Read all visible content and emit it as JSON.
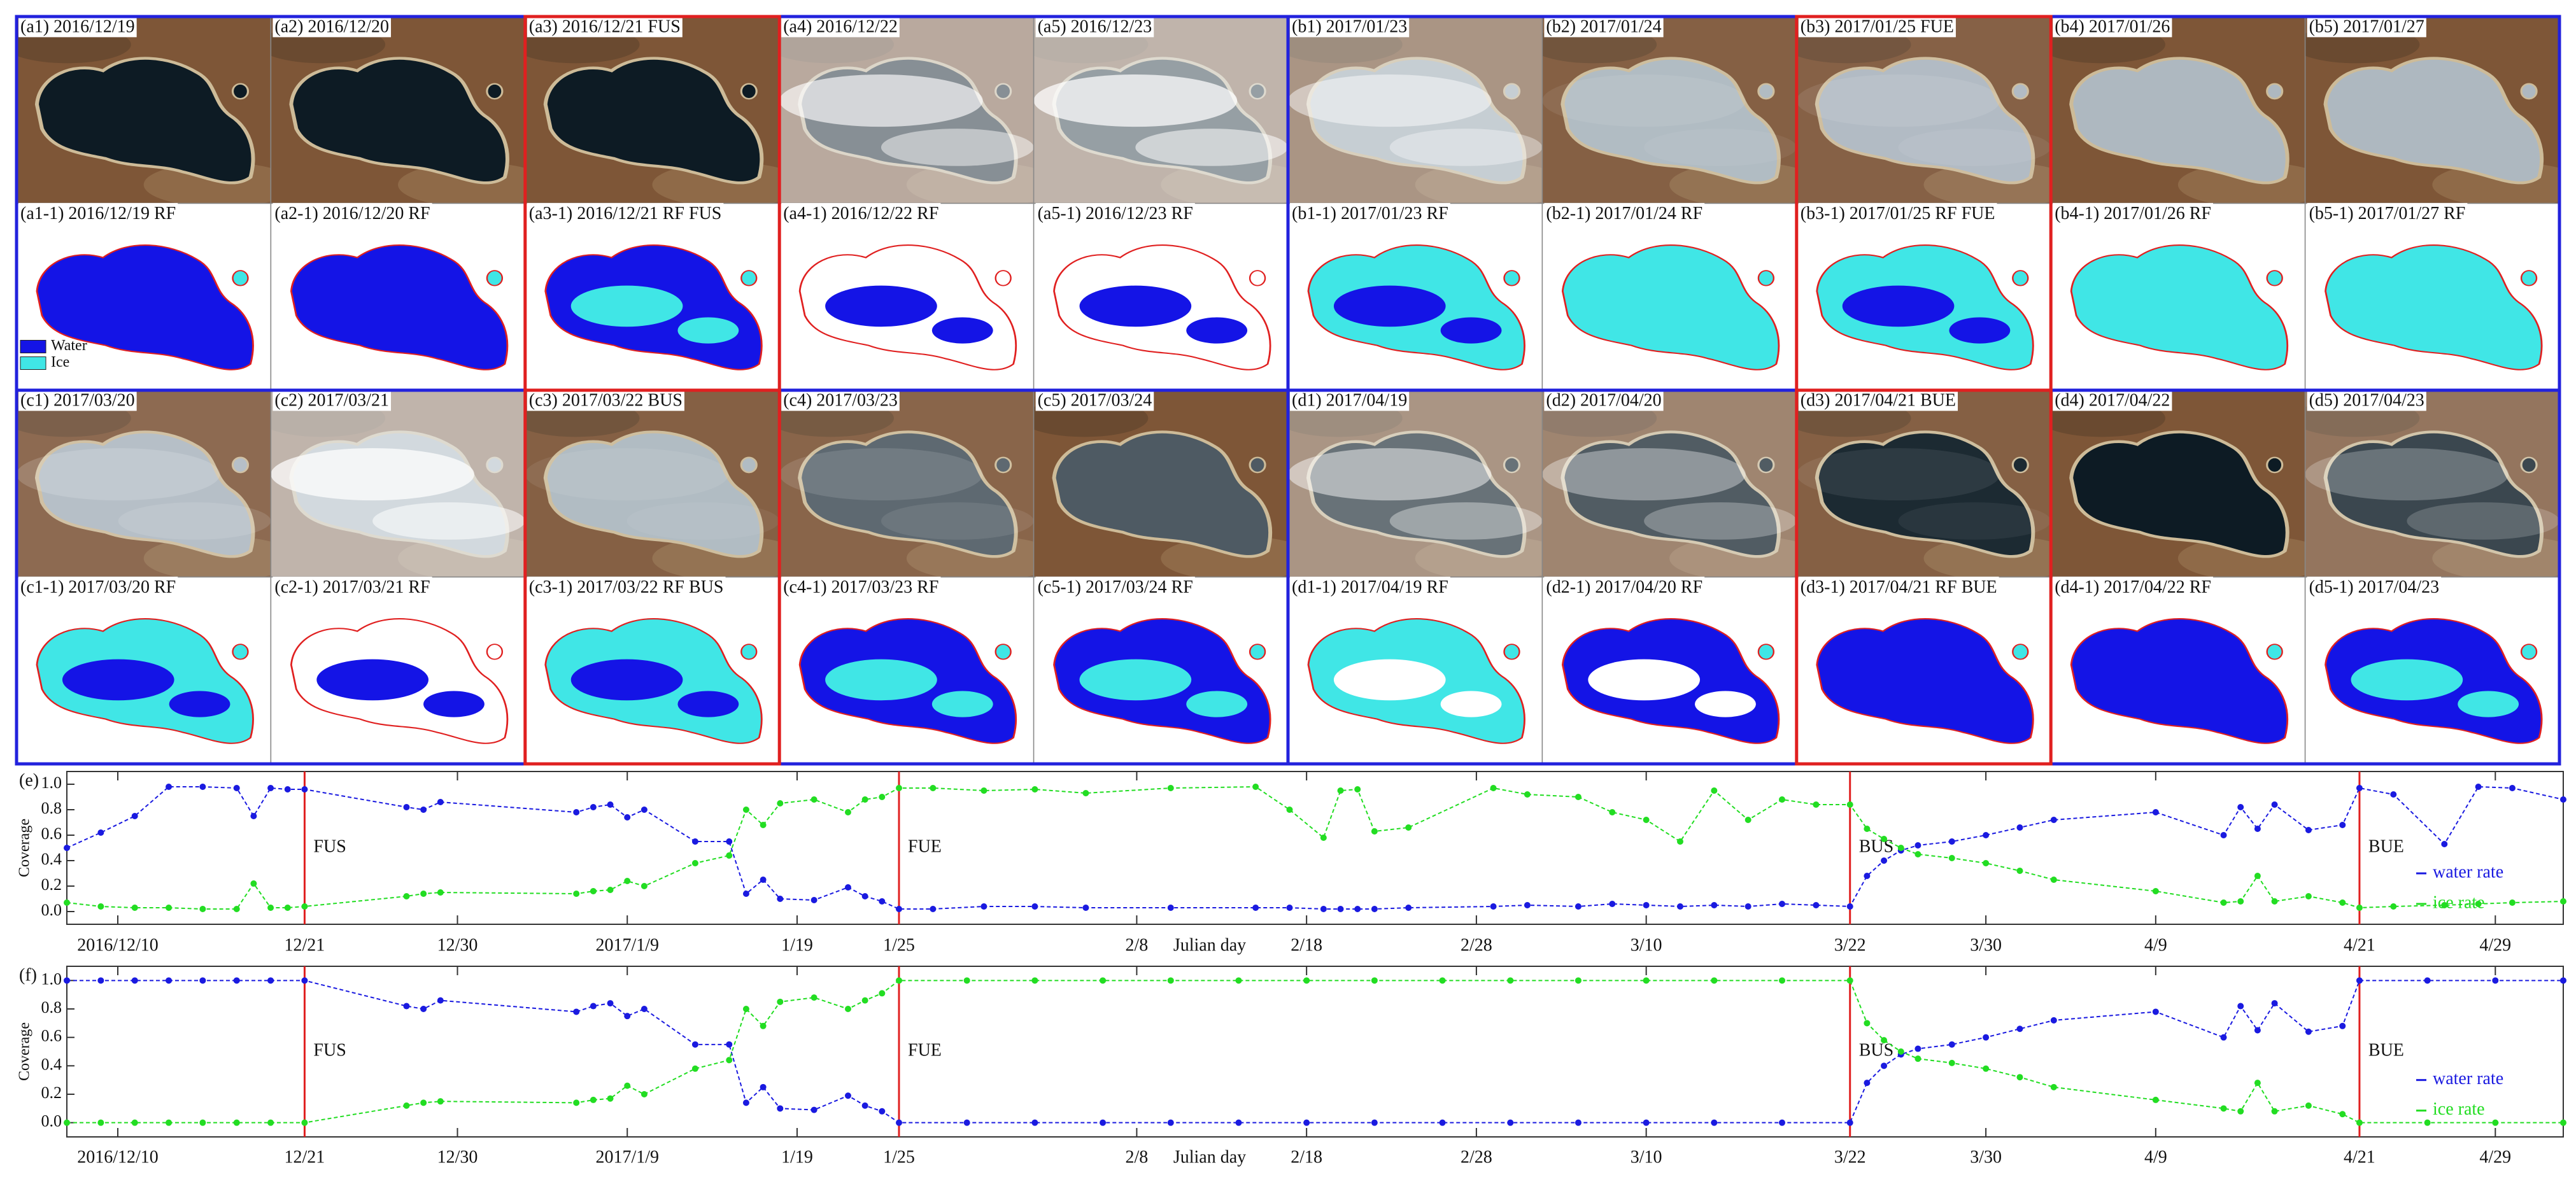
{
  "panels": [
    "(a1) 2016/12/19",
    "(a2) 2016/12/20",
    "(a3) 2016/12/21 FUS",
    "(a4) 2016/12/22",
    "(a5) 2016/12/23",
    "(b1) 2017/01/23",
    "(b2) 2017/01/24",
    "(b3) 2017/01/25 FUE",
    "(b4) 2017/01/26",
    "(b5) 2017/01/27",
    "(a1-1) 2016/12/19 RF",
    "(a2-1) 2016/12/20 RF",
    "(a3-1) 2016/12/21 RF FUS",
    "(a4-1) 2016/12/22 RF",
    "(a5-1) 2016/12/23 RF",
    "(b1-1) 2017/01/23 RF",
    "(b2-1) 2017/01/24 RF",
    "(b3-1) 2017/01/25 RF FUE",
    "(b4-1) 2017/01/26 RF",
    "(b5-1) 2017/01/27 RF",
    "(c1) 2017/03/20",
    "(c2) 2017/03/21",
    "(c3) 2017/03/22 BUS",
    "(c4) 2017/03/23",
    "(c5) 2017/03/24",
    "(d1) 2017/04/19",
    "(d2) 2017/04/20",
    "(d3) 2017/04/21 BUE",
    "(d4) 2017/04/22",
    "(d5) 2017/04/23",
    "(c1-1) 2017/03/20 RF",
    "(c2-1) 2017/03/21 RF",
    "(c3-1) 2017/03/22 RF BUS",
    "(c4-1) 2017/03/23 RF",
    "(c5-1) 2017/03/24 RF",
    "(d1-1) 2017/04/19 RF",
    "(d2-1) 2017/04/20 RF",
    "(d3-1) 2017/04/21 RF BUE",
    "(d4-1) 2017/04/22 RF",
    "(d5-1) 2017/04/23"
  ],
  "legend": [
    "Water",
    "Ice"
  ],
  "chart_data": [
    {
      "type": "line",
      "label": "(e)",
      "ylabel": "Coverage",
      "xlabel": "Julian day",
      "x": [
        "2016/12/7",
        "2016/12/9",
        "2016/12/11",
        "2016/12/13",
        "2016/12/15",
        "2016/12/17",
        "2016/12/18",
        "2016/12/19",
        "2016/12/20",
        "2016/12/21",
        "2016/12/27",
        "2016/12/28",
        "2016/12/29",
        "2017/1/6",
        "2017/1/7",
        "2017/1/8",
        "2017/1/9",
        "2017/1/10",
        "2017/1/13",
        "2017/1/15",
        "2017/1/16",
        "2017/1/17",
        "2017/1/18",
        "2017/1/20",
        "2017/1/22",
        "2017/1/23",
        "2017/1/24",
        "2017/1/25",
        "2017/1/27",
        "2017/1/30",
        "2017/2/2",
        "2017/2/5",
        "2017/2/10",
        "2017/2/15",
        "2017/2/17",
        "2017/2/19",
        "2017/2/20",
        "2017/2/21",
        "2017/2/22",
        "2017/2/24",
        "2017/3/1",
        "2017/3/3",
        "2017/3/6",
        "2017/3/8",
        "2017/3/10",
        "2017/3/12",
        "2017/3/14",
        "2017/3/16",
        "2017/3/18",
        "2017/3/20",
        "2017/3/22",
        "2017/3/23",
        "2017/3/24",
        "2017/3/25",
        "2017/3/26",
        "2017/3/28",
        "2017/3/30",
        "2017/4/1",
        "2017/4/3",
        "2017/4/9",
        "2017/4/13",
        "2017/4/14",
        "2017/4/15",
        "2017/4/16",
        "2017/4/18",
        "2017/4/20",
        "2017/4/21",
        "2017/4/23",
        "2017/4/26",
        "2017/4/28",
        "2017/4/30",
        "2017/5/3"
      ],
      "series": [
        {
          "name": "water rate",
          "color": "#1a1ae0",
          "values": [
            0.5,
            0.62,
            0.75,
            0.98,
            0.98,
            0.97,
            0.75,
            0.97,
            0.96,
            0.96,
            0.82,
            0.8,
            0.86,
            0.78,
            0.82,
            0.84,
            0.74,
            0.8,
            0.55,
            0.55,
            0.14,
            0.25,
            0.1,
            0.09,
            0.19,
            0.12,
            0.08,
            0.02,
            0.02,
            0.04,
            0.04,
            0.03,
            0.03,
            0.03,
            0.03,
            0.02,
            0.02,
            0.02,
            0.02,
            0.03,
            0.04,
            0.05,
            0.04,
            0.06,
            0.05,
            0.04,
            0.05,
            0.04,
            0.06,
            0.05,
            0.04,
            0.28,
            0.4,
            0.48,
            0.52,
            0.55,
            0.6,
            0.66,
            0.72,
            0.78,
            0.6,
            0.82,
            0.65,
            0.84,
            0.64,
            0.68,
            0.97,
            0.92,
            0.53,
            0.98,
            0.97,
            0.88
          ]
        },
        {
          "name": "ice rate",
          "color": "#22dd22",
          "values": [
            0.07,
            0.04,
            0.03,
            0.03,
            0.02,
            0.02,
            0.22,
            0.03,
            0.03,
            0.04,
            0.12,
            0.14,
            0.15,
            0.14,
            0.16,
            0.17,
            0.24,
            0.2,
            0.38,
            0.44,
            0.8,
            0.68,
            0.85,
            0.88,
            0.78,
            0.88,
            0.9,
            0.97,
            0.97,
            0.95,
            0.96,
            0.93,
            0.97,
            0.98,
            0.8,
            0.58,
            0.95,
            0.96,
            0.63,
            0.66,
            0.97,
            0.92,
            0.9,
            0.78,
            0.72,
            0.55,
            0.95,
            0.72,
            0.88,
            0.84,
            0.84,
            0.65,
            0.57,
            0.5,
            0.45,
            0.42,
            0.38,
            0.32,
            0.25,
            0.16,
            0.07,
            0.08,
            0.28,
            0.08,
            0.12,
            0.07,
            0.03,
            0.04,
            0.05,
            0.06,
            0.07,
            0.08
          ]
        }
      ],
      "xlim": [
        "2016/12/7",
        "2017/5/3"
      ],
      "ylim": [
        -0.1,
        1.1
      ],
      "xticks": [
        "2016/12/10",
        {
          "value": "2016/12/21",
          "label": "12/21"
        },
        {
          "value": "2016/12/30",
          "label": "12/30"
        },
        "2017/1/9",
        {
          "value": "2017/1/19",
          "label": "1/19"
        },
        {
          "value": "2017/1/25",
          "label": "1/25"
        },
        {
          "value": "2017/2/8",
          "label": "2/8"
        },
        {
          "value": "2017/2/18",
          "label": "2/18"
        },
        {
          "value": "2017/2/28",
          "label": "2/28"
        },
        {
          "value": "2017/3/10",
          "label": "3/10"
        },
        {
          "value": "2017/3/22",
          "label": "3/22"
        },
        {
          "value": "2017/3/30",
          "label": "3/30"
        },
        {
          "value": "2017/4/9",
          "label": "4/9"
        },
        {
          "value": "2017/4/21",
          "label": "4/21"
        },
        {
          "value": "2017/4/29",
          "label": "4/29"
        }
      ],
      "yticks": [
        {
          "value": 0,
          "label": "0.0"
        },
        0.2,
        0.4,
        0.6,
        0.8,
        {
          "value": 1,
          "label": "1.0"
        }
      ],
      "annotations": [
        {
          "x": "2016/12/21",
          "text": "FUS"
        },
        {
          "x": "2017/1/25",
          "text": "FUE"
        },
        {
          "x": "2017/3/22",
          "text": "BUS"
        },
        {
          "x": "2017/4/21",
          "text": "BUE"
        }
      ],
      "legend_position": "right"
    },
    {
      "type": "line",
      "label": "(f)",
      "ylabel": "Coverage",
      "xlabel": "Julian day",
      "x": [
        "2016/12/7",
        "2016/12/9",
        "2016/12/11",
        "2016/12/13",
        "2016/12/15",
        "2016/12/17",
        "2016/12/19",
        "2016/12/21",
        "2016/12/27",
        "2016/12/28",
        "2016/12/29",
        "2017/1/6",
        "2017/1/7",
        "2017/1/8",
        "2017/1/9",
        "2017/1/10",
        "2017/1/13",
        "2017/1/15",
        "2017/1/16",
        "2017/1/17",
        "2017/1/18",
        "2017/1/20",
        "2017/1/22",
        "2017/1/23",
        "2017/1/24",
        "2017/1/25",
        "2017/1/29",
        "2017/2/2",
        "2017/2/6",
        "2017/2/10",
        "2017/2/14",
        "2017/2/18",
        "2017/2/22",
        "2017/2/26",
        "2017/3/2",
        "2017/3/6",
        "2017/3/10",
        "2017/3/14",
        "2017/3/18",
        "2017/3/22",
        "2017/3/23",
        "2017/3/24",
        "2017/3/25",
        "2017/3/26",
        "2017/3/28",
        "2017/3/30",
        "2017/4/1",
        "2017/4/3",
        "2017/4/9",
        "2017/4/13",
        "2017/4/14",
        "2017/4/15",
        "2017/4/16",
        "2017/4/18",
        "2017/4/20",
        "2017/4/21",
        "2017/4/25",
        "2017/4/29",
        "2017/5/3"
      ],
      "series": [
        {
          "name": "water rate",
          "color": "#1a1ae0",
          "values": [
            1,
            1,
            1,
            1,
            1,
            1,
            1,
            1,
            0.82,
            0.8,
            0.86,
            0.78,
            0.82,
            0.84,
            0.75,
            0.8,
            0.55,
            0.55,
            0.14,
            0.25,
            0.1,
            0.09,
            0.19,
            0.12,
            0.08,
            0,
            0,
            0,
            0,
            0,
            0,
            0,
            0,
            0,
            0,
            0,
            0,
            0,
            0,
            0,
            0.28,
            0.4,
            0.48,
            0.52,
            0.55,
            0.6,
            0.66,
            0.72,
            0.78,
            0.6,
            0.82,
            0.65,
            0.84,
            0.64,
            0.68,
            1,
            1,
            1,
            1
          ]
        },
        {
          "name": "ice rate",
          "color": "#22dd22",
          "values": [
            0,
            0,
            0,
            0,
            0,
            0,
            0,
            0,
            0.12,
            0.14,
            0.15,
            0.14,
            0.16,
            0.17,
            0.26,
            0.2,
            0.38,
            0.44,
            0.8,
            0.68,
            0.85,
            0.88,
            0.8,
            0.86,
            0.91,
            1,
            1,
            1,
            1,
            1,
            1,
            1,
            1,
            1,
            1,
            1,
            1,
            1,
            1,
            1,
            0.7,
            0.58,
            0.5,
            0.45,
            0.42,
            0.38,
            0.32,
            0.25,
            0.16,
            0.1,
            0.08,
            0.28,
            0.08,
            0.12,
            0.06,
            0,
            0,
            0,
            0
          ]
        }
      ],
      "xlim": [
        "2016/12/7",
        "2017/5/3"
      ],
      "ylim": [
        -0.1,
        1.1
      ],
      "xticks": [
        "2016/12/10",
        {
          "value": "2016/12/21",
          "label": "12/21"
        },
        {
          "value": "2016/12/30",
          "label": "12/30"
        },
        "2017/1/9",
        {
          "value": "2017/1/19",
          "label": "1/19"
        },
        {
          "value": "2017/1/25",
          "label": "1/25"
        },
        {
          "value": "2017/2/8",
          "label": "2/8"
        },
        {
          "value": "2017/2/18",
          "label": "2/18"
        },
        {
          "value": "2017/2/28",
          "label": "2/28"
        },
        {
          "value": "2017/3/10",
          "label": "3/10"
        },
        {
          "value": "2017/3/22",
          "label": "3/22"
        },
        {
          "value": "2017/3/30",
          "label": "3/30"
        },
        {
          "value": "2017/4/9",
          "label": "4/9"
        },
        {
          "value": "2017/4/21",
          "label": "4/21"
        },
        {
          "value": "2017/4/29",
          "label": "4/29"
        }
      ],
      "yticks": [
        {
          "value": 0,
          "label": "0.0"
        },
        0.2,
        0.4,
        0.6,
        0.8,
        {
          "value": 1,
          "label": "1.0"
        }
      ],
      "annotations": [
        {
          "x": "2016/12/21",
          "text": "FUS"
        },
        {
          "x": "2017/1/25",
          "text": "FUE"
        },
        {
          "x": "2017/3/22",
          "text": "BUS"
        },
        {
          "x": "2017/4/21",
          "text": "BUE"
        }
      ],
      "legend_position": "right"
    }
  ]
}
